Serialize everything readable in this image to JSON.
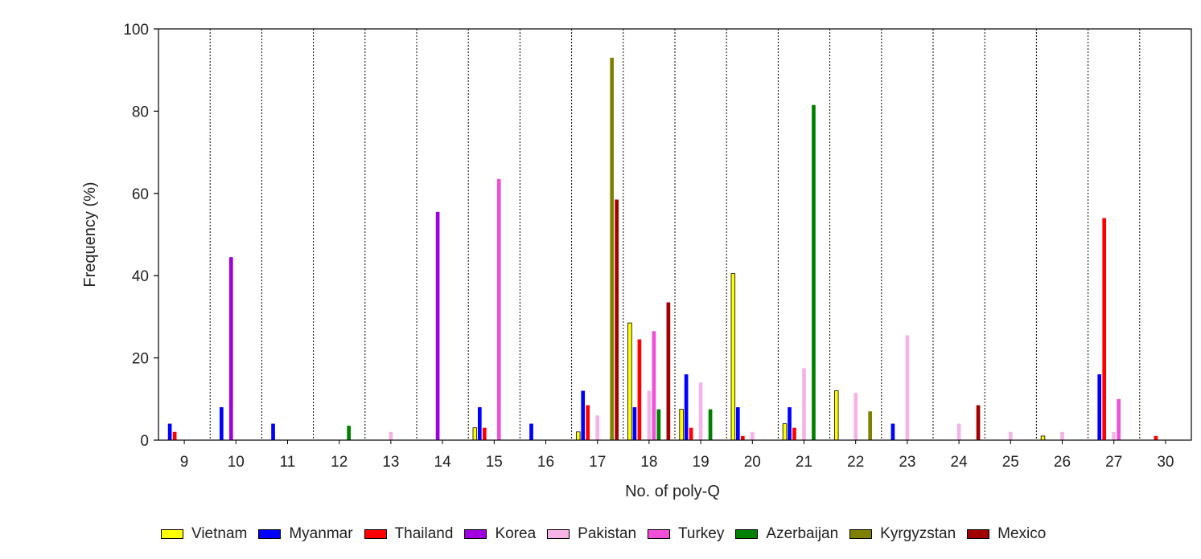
{
  "chart_data": {
    "type": "bar",
    "title": "",
    "xlabel": "No. of poly-Q",
    "ylabel": "Frequency (%)",
    "ylim": [
      0,
      100
    ],
    "yticks": [
      "0",
      "20",
      "40",
      "60",
      "80",
      "100"
    ],
    "grid": "vertical dotted separators between categories",
    "legend_position": "bottom",
    "categories": [
      "9",
      "10",
      "11",
      "12",
      "13",
      "14",
      "15",
      "16",
      "17",
      "18",
      "19",
      "20",
      "21",
      "22",
      "23",
      "24",
      "25",
      "26",
      "27",
      "30"
    ],
    "series": [
      {
        "name": "Vietnam",
        "color": "#ffff00",
        "outline": "#000000",
        "values": [
          0,
          0,
          0,
          0,
          0,
          0,
          3,
          0,
          2,
          28.5,
          7.5,
          40.5,
          4,
          12,
          0,
          0,
          0,
          1,
          0,
          0
        ]
      },
      {
        "name": "Myanmar",
        "color": "#0000ff",
        "outline": null,
        "values": [
          4,
          8,
          4,
          0,
          0,
          0,
          8,
          4,
          12,
          8,
          16,
          8,
          8,
          0,
          4,
          0,
          0,
          0,
          16,
          0
        ]
      },
      {
        "name": "Thailand",
        "color": "#ff0000",
        "outline": null,
        "values": [
          2,
          0,
          0,
          0,
          0,
          0,
          3,
          0,
          8.5,
          24.5,
          3,
          1,
          3,
          0,
          0,
          0,
          0,
          0,
          54,
          1
        ]
      },
      {
        "name": "Korea",
        "color": "#a000e0",
        "outline": null,
        "values": [
          0,
          44.5,
          0,
          0,
          0,
          55.5,
          0,
          0,
          0,
          0,
          0,
          0,
          0,
          0,
          0,
          0,
          0,
          0,
          0,
          0
        ]
      },
      {
        "name": "Pakistan",
        "color": "#f5b3e6",
        "outline": null,
        "values": [
          0,
          0,
          0,
          0,
          2,
          0,
          0,
          0,
          6,
          12,
          14,
          2,
          17.5,
          11.5,
          25.5,
          4,
          2,
          2,
          2,
          0
        ]
      },
      {
        "name": "Turkey",
        "color": "#f050d8",
        "outline": null,
        "values": [
          0,
          0,
          0,
          0,
          0,
          0,
          63.5,
          0,
          0,
          26.5,
          0,
          0,
          0,
          0,
          0,
          0,
          0,
          0,
          10,
          0
        ]
      },
      {
        "name": "Azerbaijan",
        "color": "#008000",
        "outline": null,
        "values": [
          0,
          0,
          0,
          3.5,
          0,
          0,
          0,
          0,
          0,
          7.5,
          7.5,
          0,
          81.5,
          0,
          0,
          0,
          0,
          0,
          0,
          0
        ]
      },
      {
        "name": "Kyrgyzstan",
        "color": "#808000",
        "outline": null,
        "values": [
          0,
          0,
          0,
          0,
          0,
          0,
          0,
          0,
          93,
          0,
          0,
          0,
          0,
          7,
          0,
          0,
          0,
          0,
          0,
          0
        ]
      },
      {
        "name": "Mexico",
        "color": "#a00000",
        "outline": null,
        "values": [
          0,
          0,
          0,
          0,
          0,
          0,
          0,
          0,
          58.5,
          33.5,
          0,
          0,
          0,
          0,
          0,
          8.5,
          0,
          0,
          0,
          0
        ]
      }
    ]
  }
}
